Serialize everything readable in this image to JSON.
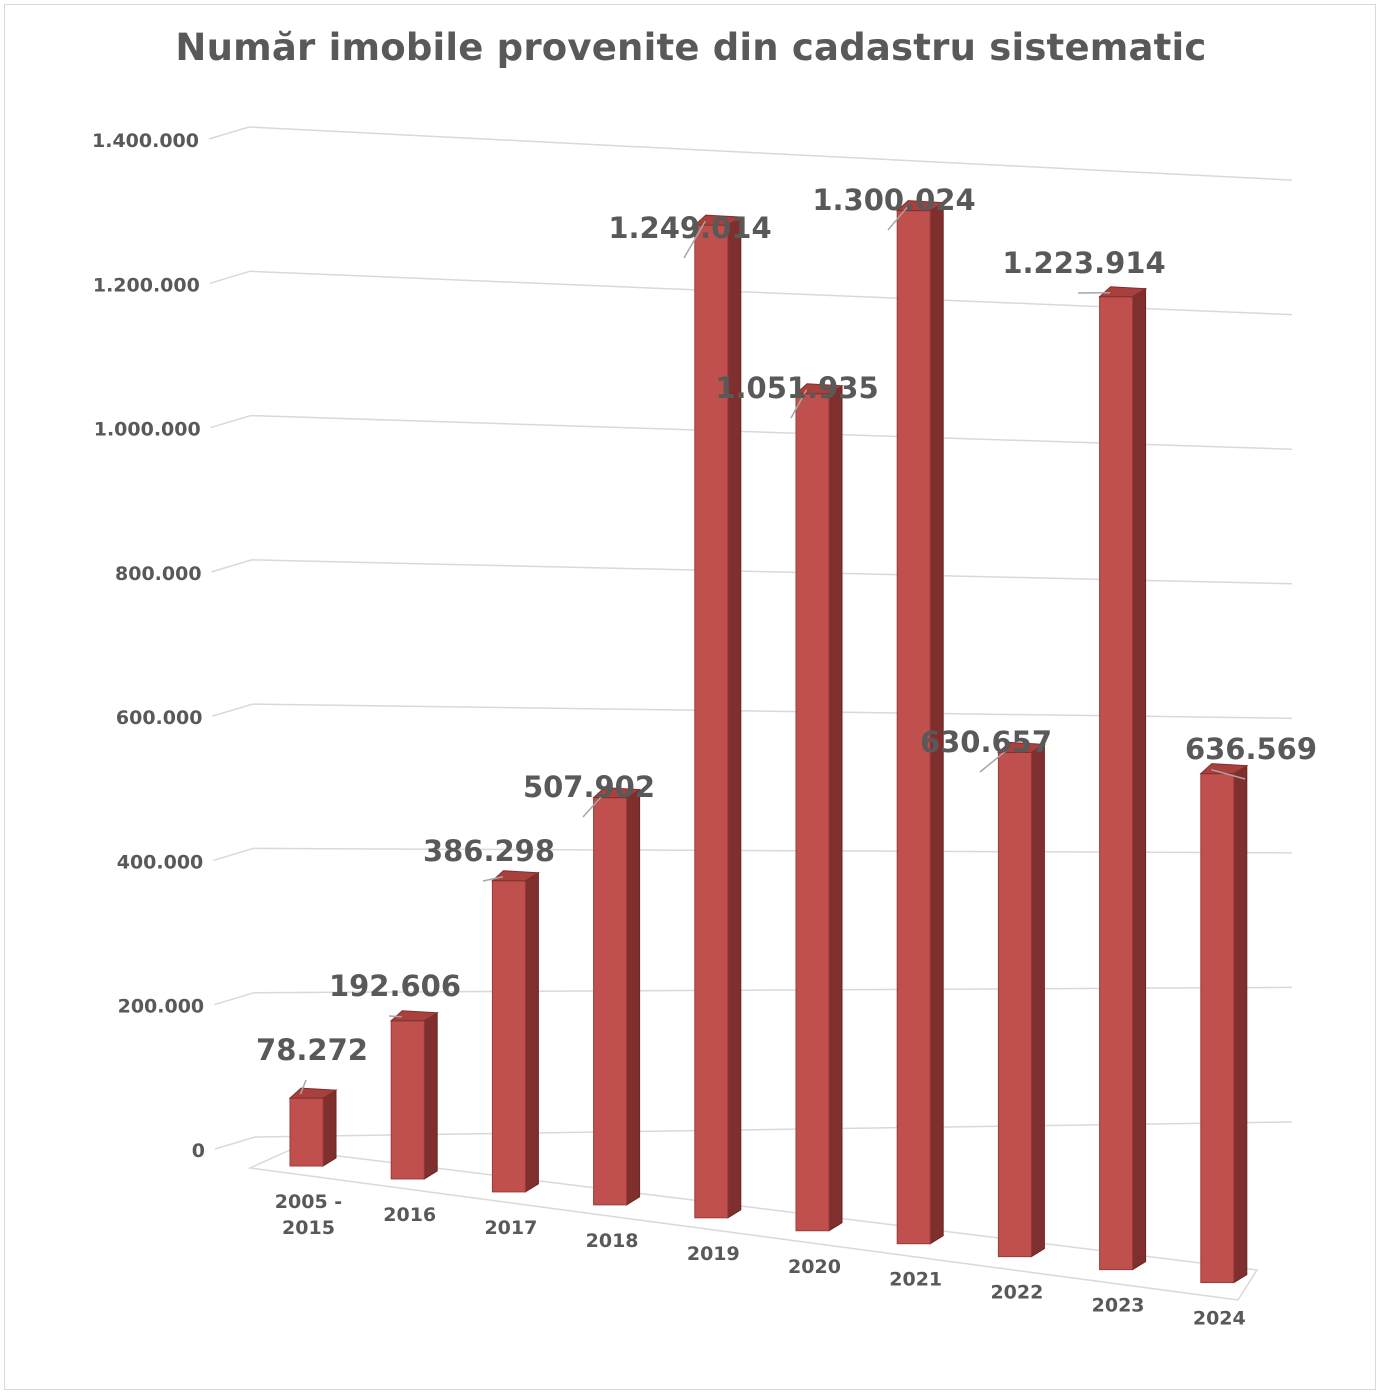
{
  "chart_data": {
    "type": "bar",
    "title": "Număr imobile provenite din cadastru sistematic",
    "categories": [
      [
        "2005 -",
        "2015"
      ],
      [
        "2016"
      ],
      [
        "2017"
      ],
      [
        "2018"
      ],
      [
        "2019"
      ],
      [
        "2020"
      ],
      [
        "2021"
      ],
      [
        "2022"
      ],
      [
        "2023"
      ],
      [
        "2024"
      ]
    ],
    "values": [
      78272,
      192606,
      386298,
      507902,
      1249014,
      1051935,
      1300024,
      630657,
      1223914,
      636569
    ],
    "data_labels": [
      "78.272",
      "192.606",
      "386.298",
      "507.902",
      "1.249.014",
      "1.051.935",
      "1.300.024",
      "630.657",
      "1.223.914",
      "636.569"
    ],
    "ylim": [
      0,
      1400000
    ],
    "yticks": [
      0,
      200000,
      400000,
      600000,
      800000,
      1000000,
      1200000,
      1400000
    ],
    "ytick_labels": [
      "0",
      "200.000",
      "400.000",
      "600.000",
      "800.000",
      "1.000.000",
      "1.200.000",
      "1.400.000"
    ],
    "grid": true,
    "colors": {
      "bar_front": "#c0504d",
      "bar_side": "#7f2f2d",
      "bar_top": "#a8403d",
      "grid": "#d9d9d9",
      "text": "#595959"
    }
  }
}
